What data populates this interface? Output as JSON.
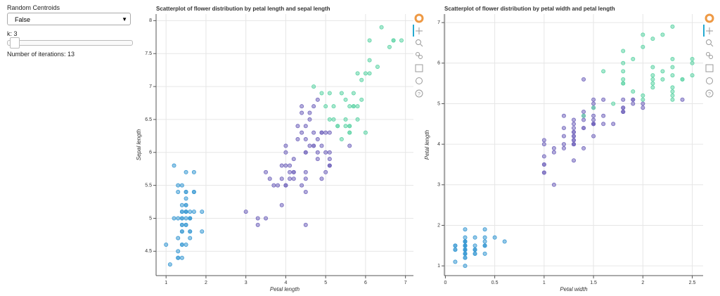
{
  "controls": {
    "random_centroids_label": "Random Centroids",
    "random_centroids_value": "False",
    "k_label": "k: 3",
    "iterations_label": "Number of iterations: 13"
  },
  "chart_data": [
    {
      "type": "scatter",
      "title": "Scatterplot of flower distribution by petal length and sepal length",
      "x_label": "Petal length",
      "y_label": "Sepal length",
      "xlim": [
        0.75,
        7.2
      ],
      "xticks": [
        1,
        2,
        3,
        4,
        5,
        6,
        7
      ],
      "ylim": [
        4.13,
        8.1
      ],
      "yticks": [
        4.5,
        5,
        5.5,
        6,
        6.5,
        7,
        7.5,
        8
      ],
      "grid": true,
      "series": [
        {
          "color": "#3d9bd4",
          "x": [
            1.4,
            1.4,
            1.3,
            1.5,
            1.4,
            1.7,
            1.4,
            1.5,
            1.4,
            1.5,
            1.5,
            1.6,
            1.4,
            1.1,
            1.2,
            1.5,
            1.3,
            1.4,
            1.7,
            1.5,
            1.7,
            1.5,
            1.0,
            1.7,
            1.9,
            1.6,
            1.6,
            1.5,
            1.4,
            1.6,
            1.6,
            1.5,
            1.5,
            1.4,
            1.5,
            1.2,
            1.3,
            1.4,
            1.3,
            1.5,
            1.3,
            1.3,
            1.3,
            1.6,
            1.9,
            1.4,
            1.6,
            1.4,
            1.5,
            1.4
          ],
          "values": [
            5.1,
            4.9,
            4.7,
            4.6,
            5.0,
            5.4,
            4.6,
            5.0,
            4.4,
            4.9,
            5.4,
            4.8,
            4.8,
            4.3,
            5.8,
            5.7,
            5.4,
            5.1,
            5.7,
            5.1,
            5.4,
            5.1,
            4.6,
            5.1,
            4.8,
            5.0,
            5.0,
            5.2,
            5.2,
            4.7,
            4.8,
            5.4,
            5.2,
            5.5,
            4.9,
            5.0,
            5.5,
            4.9,
            4.4,
            5.1,
            5.0,
            4.5,
            4.4,
            5.0,
            5.1,
            4.8,
            5.1,
            4.6,
            5.3,
            5.0
          ]
        },
        {
          "color": "#7468bd",
          "x": [
            4.5,
            4.0,
            4.6,
            4.5,
            4.7,
            3.3,
            4.6,
            3.9,
            3.5,
            4.2,
            4.0,
            4.7,
            3.6,
            4.4,
            4.5,
            4.1,
            4.5,
            3.9,
            4.8,
            4.0,
            4.9,
            4.7,
            4.3,
            4.4,
            4.8,
            4.5,
            3.5,
            3.8,
            3.7,
            3.9,
            5.1,
            4.5,
            4.5,
            4.7,
            4.4,
            4.1,
            4.0,
            4.4,
            4.6,
            4.0,
            3.3,
            4.2,
            4.2,
            4.2,
            4.3,
            3.0,
            4.1,
            5.1,
            4.5,
            5.0,
            5.1,
            5.0,
            4.9,
            4.9,
            4.8,
            4.9,
            5.1,
            5.6,
            4.8,
            5.1,
            5.0,
            5.1
          ],
          "values": [
            6.4,
            5.5,
            6.5,
            5.7,
            6.3,
            4.9,
            6.6,
            5.2,
            5.0,
            5.9,
            6.0,
            6.1,
            5.6,
            6.7,
            5.6,
            5.8,
            6.2,
            5.6,
            5.9,
            6.1,
            6.3,
            6.1,
            6.4,
            6.6,
            6.8,
            6.0,
            5.7,
            5.5,
            5.5,
            5.8,
            6.0,
            5.4,
            6.0,
            6.7,
            6.3,
            5.6,
            5.5,
            5.5,
            6.1,
            5.8,
            5.0,
            5.6,
            5.7,
            5.7,
            6.2,
            5.1,
            5.7,
            5.8,
            4.9,
            5.7,
            5.8,
            6.0,
            5.6,
            6.3,
            6.2,
            6.1,
            6.3,
            6.1,
            6.0,
            5.8,
            6.3,
            5.9
          ]
        },
        {
          "color": "#5fd4a6",
          "x": [
            4.7,
            4.9,
            5.0,
            6.0,
            5.9,
            5.6,
            5.8,
            6.6,
            6.3,
            5.8,
            6.1,
            5.1,
            5.3,
            5.5,
            5.3,
            5.5,
            6.7,
            6.9,
            5.7,
            6.7,
            5.7,
            6.0,
            5.6,
            5.8,
            6.1,
            6.4,
            5.6,
            6.1,
            5.6,
            5.5,
            5.4,
            5.6,
            5.1,
            5.9,
            5.7,
            5.2,
            5.2,
            5.4
          ],
          "values": [
            7.0,
            6.9,
            6.7,
            6.3,
            7.1,
            6.3,
            6.5,
            7.6,
            7.3,
            6.7,
            7.2,
            6.5,
            6.4,
            6.8,
            6.4,
            6.5,
            7.7,
            7.7,
            6.9,
            7.7,
            6.7,
            7.2,
            6.4,
            7.2,
            7.4,
            7.9,
            6.4,
            7.7,
            6.3,
            6.4,
            6.9,
            6.7,
            6.9,
            6.8,
            6.7,
            6.7,
            6.5,
            6.2
          ]
        }
      ]
    },
    {
      "type": "scatter",
      "title": "Scatterplot of flower distribution by petal width and petal length",
      "x_label": "Petal width",
      "y_label": "Petal length",
      "xlim": [
        -0.01,
        2.61
      ],
      "xticks": [
        0,
        0.5,
        1,
        1.5,
        2,
        2.5
      ],
      "ylim": [
        0.76,
        7.21
      ],
      "yticks": [
        1,
        2,
        3,
        4,
        5,
        6,
        7
      ],
      "grid": true,
      "series": [
        {
          "color": "#3d9bd4",
          "x": [
            0.2,
            0.2,
            0.2,
            0.2,
            0.2,
            0.4,
            0.3,
            0.2,
            0.2,
            0.1,
            0.2,
            0.2,
            0.1,
            0.1,
            0.2,
            0.4,
            0.4,
            0.3,
            0.3,
            0.3,
            0.2,
            0.4,
            0.2,
            0.5,
            0.2,
            0.2,
            0.4,
            0.2,
            0.2,
            0.2,
            0.2,
            0.4,
            0.1,
            0.2,
            0.2,
            0.2,
            0.2,
            0.1,
            0.2,
            0.2,
            0.3,
            0.3,
            0.2,
            0.6,
            0.4,
            0.3,
            0.2,
            0.2,
            0.2,
            0.2
          ],
          "values": [
            1.4,
            1.4,
            1.3,
            1.5,
            1.4,
            1.7,
            1.4,
            1.5,
            1.4,
            1.5,
            1.5,
            1.6,
            1.4,
            1.1,
            1.2,
            1.5,
            1.3,
            1.4,
            1.7,
            1.5,
            1.7,
            1.5,
            1.0,
            1.7,
            1.9,
            1.6,
            1.6,
            1.5,
            1.4,
            1.6,
            1.6,
            1.5,
            1.5,
            1.4,
            1.5,
            1.2,
            1.3,
            1.4,
            1.3,
            1.5,
            1.3,
            1.3,
            1.3,
            1.6,
            1.9,
            1.4,
            1.6,
            1.4,
            1.5,
            1.4
          ]
        },
        {
          "color": "#7468bd",
          "x": [
            1.5,
            1.3,
            1.5,
            1.3,
            1.6,
            1.0,
            1.3,
            1.4,
            1.0,
            1.5,
            1.0,
            1.4,
            1.3,
            1.4,
            1.5,
            1.0,
            1.5,
            1.1,
            1.8,
            1.3,
            1.5,
            1.2,
            1.3,
            1.4,
            1.4,
            1.5,
            1.0,
            1.1,
            1.0,
            1.2,
            1.6,
            1.5,
            1.6,
            1.5,
            1.3,
            1.3,
            1.3,
            1.2,
            1.4,
            1.2,
            1.0,
            1.3,
            1.2,
            1.3,
            1.3,
            1.1,
            1.3,
            1.9,
            1.7,
            2.0,
            2.4,
            1.5,
            2.0,
            1.8,
            1.8,
            1.8,
            1.5,
            1.4,
            1.8,
            1.9,
            1.9,
            1.8
          ],
          "values": [
            4.5,
            4.0,
            4.6,
            4.5,
            4.7,
            3.3,
            4.6,
            3.9,
            3.5,
            4.2,
            4.0,
            4.7,
            3.6,
            4.4,
            4.5,
            4.1,
            4.5,
            3.9,
            4.8,
            4.0,
            4.9,
            4.7,
            4.3,
            4.4,
            4.8,
            4.5,
            3.5,
            3.8,
            3.7,
            3.9,
            5.1,
            4.5,
            4.5,
            4.7,
            4.4,
            4.1,
            4.0,
            4.4,
            4.6,
            4.0,
            3.3,
            4.2,
            4.2,
            4.2,
            4.3,
            3.0,
            4.1,
            5.1,
            4.5,
            5.0,
            5.1,
            5.0,
            4.9,
            4.9,
            4.8,
            4.9,
            5.1,
            5.6,
            4.8,
            5.1,
            5.0,
            5.1
          ]
        },
        {
          "color": "#5fd4a6",
          "x": [
            1.4,
            1.5,
            1.7,
            2.5,
            2.1,
            1.8,
            2.2,
            2.1,
            1.8,
            1.8,
            2.5,
            2.0,
            1.9,
            2.1,
            2.3,
            1.8,
            2.2,
            2.3,
            2.3,
            2.0,
            2.1,
            1.8,
            2.1,
            1.6,
            1.9,
            2.0,
            2.2,
            2.3,
            2.4,
            1.8,
            2.1,
            2.4,
            2.3,
            2.3,
            2.5,
            2.3,
            2.0,
            2.3
          ],
          "values": [
            4.7,
            4.9,
            5.0,
            6.0,
            5.9,
            5.6,
            5.8,
            6.6,
            6.3,
            5.8,
            6.1,
            5.1,
            5.3,
            5.5,
            5.3,
            5.5,
            6.7,
            6.9,
            5.7,
            6.7,
            5.7,
            6.0,
            5.6,
            5.8,
            6.1,
            6.4,
            5.6,
            6.1,
            5.6,
            5.5,
            5.4,
            5.6,
            5.1,
            5.9,
            5.7,
            5.2,
            5.2,
            5.4
          ]
        }
      ]
    }
  ]
}
